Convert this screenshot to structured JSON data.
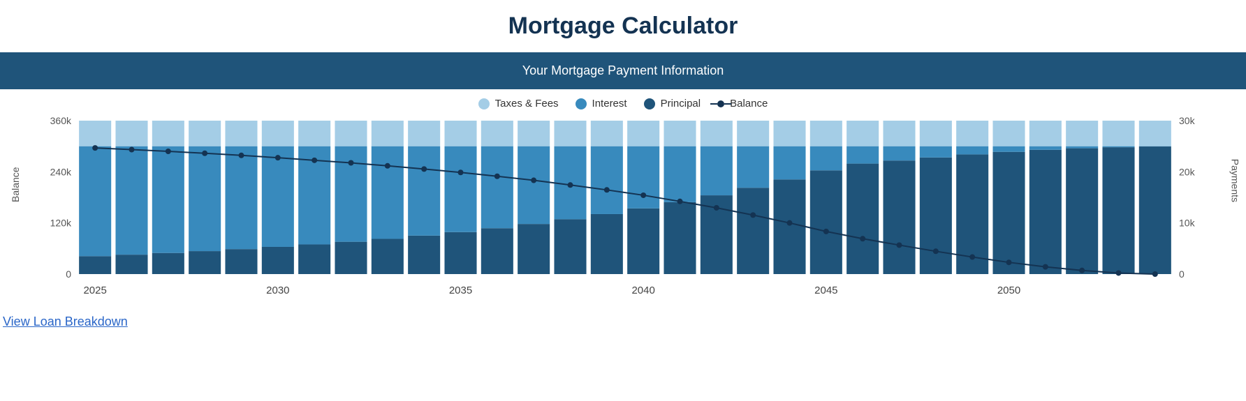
{
  "title": "Mortgage Calculator",
  "banner": "Your Mortgage Payment Information",
  "legend": {
    "taxes": "Taxes & Fees",
    "interest": "Interest",
    "principal": "Principal",
    "balance": "Balance"
  },
  "link_text": "View Loan Breakdown",
  "chart": {
    "type": "stacked-bar-with-line",
    "colors": {
      "taxes": "#a4cde6",
      "interest": "#388abd",
      "principal": "#1f547a",
      "balance_line": "#143352",
      "balance_marker": "#143352",
      "axis_text": "#555555",
      "background": "#ffffff"
    },
    "bar_gap_ratio": 0.12,
    "line_width": 2,
    "marker_radius": 4,
    "left_axis": {
      "label": "Balance",
      "min": 0,
      "max": 360000,
      "ticks": [
        0,
        120000,
        240000,
        360000
      ],
      "tick_labels": [
        "0",
        "120k",
        "240k",
        "360k"
      ]
    },
    "right_axis": {
      "label": "Payments",
      "min": 0,
      "max": 30000,
      "ticks": [
        0,
        10000,
        20000,
        30000
      ],
      "tick_labels": [
        "0",
        "10k",
        "20k",
        "30k"
      ]
    },
    "x_axis": {
      "years": [
        2025,
        2026,
        2027,
        2028,
        2029,
        2030,
        2031,
        2032,
        2033,
        2034,
        2035,
        2036,
        2037,
        2038,
        2039,
        2040,
        2041,
        2042,
        2043,
        2044,
        2045,
        2046,
        2047,
        2048,
        2049,
        2050,
        2051,
        2052,
        2053,
        2054
      ],
      "tick_years": [
        2025,
        2030,
        2035,
        2040,
        2045,
        2050
      ]
    },
    "series": {
      "taxes": [
        5000,
        5000,
        5000,
        5000,
        5000,
        5000,
        5000,
        5000,
        5000,
        5000,
        5000,
        5000,
        5000,
        5000,
        5000,
        5000,
        5000,
        5000,
        5000,
        5000,
        5000,
        5000,
        5000,
        5000,
        5000,
        5000,
        5000,
        5000,
        5000,
        5000
      ],
      "interest": [
        21500,
        21200,
        20870,
        20510,
        20115,
        19680,
        19200,
        18680,
        18110,
        17480,
        16790,
        16030,
        15200,
        14280,
        13270,
        12160,
        10940,
        9600,
        8120,
        6500,
        4720,
        3400,
        2800,
        2200,
        1600,
        1100,
        700,
        400,
        200,
        50
      ],
      "principal": [
        3500,
        3800,
        4130,
        4490,
        4885,
        5320,
        5800,
        6320,
        6890,
        7520,
        8210,
        8970,
        9800,
        10720,
        11730,
        12840,
        14060,
        15400,
        16880,
        18500,
        20280,
        21600,
        22200,
        22800,
        23400,
        23900,
        24300,
        24600,
        24800,
        24950
      ],
      "balance": [
        296000,
        292000,
        288000,
        283500,
        278500,
        273000,
        267000,
        261000,
        254000,
        246500,
        238500,
        229500,
        220000,
        209000,
        197500,
        185000,
        170500,
        155500,
        138500,
        120000,
        100000,
        83000,
        68000,
        53500,
        40000,
        27500,
        17000,
        8500,
        2500,
        0
      ]
    }
  }
}
